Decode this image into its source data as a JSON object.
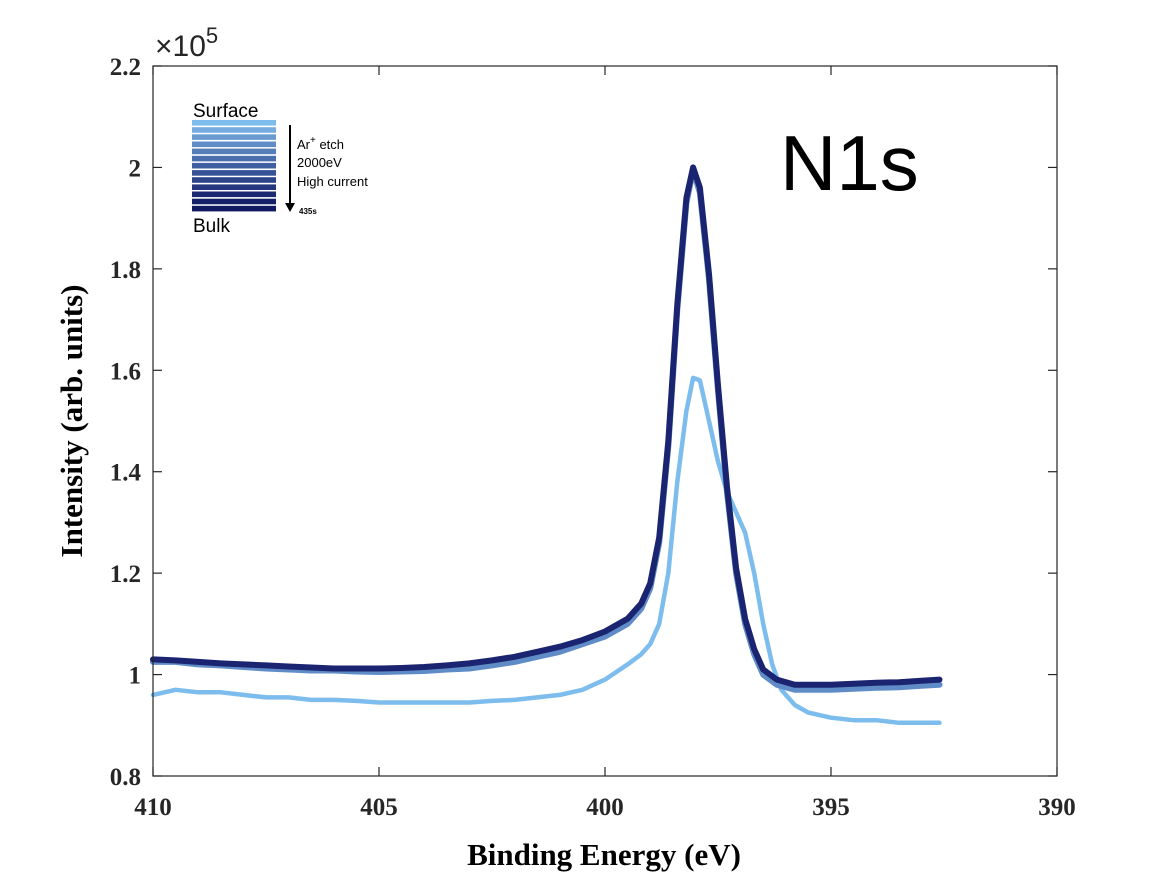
{
  "chart_data": {
    "type": "line",
    "annotation": "N1s",
    "xlabel": "Binding Energy (eV)",
    "ylabel": "Intensity (arb. units)",
    "y_exponent_label": "×10",
    "y_exponent_power": "5",
    "xlim": [
      410,
      390
    ],
    "ylim": [
      0.8,
      2.2
    ],
    "x_reversed": true,
    "grid": false,
    "xticks": [
      410,
      405,
      400,
      395,
      390
    ],
    "xtick_labels": [
      "410",
      "405",
      "400",
      "395",
      "390"
    ],
    "yticks": [
      0.8,
      1.0,
      1.2,
      1.4,
      1.6,
      1.8,
      2.0,
      2.2
    ],
    "ytick_labels": [
      "0.8",
      "1",
      "1.2",
      "1.4",
      "1.6",
      "1.8",
      "2",
      "2.2"
    ],
    "legend": {
      "placement": "top-left",
      "top_label": "Surface",
      "bottom_label": "Bulk",
      "arrow_line1_base": "Ar",
      "arrow_line1_sup": "+",
      "arrow_line1_rest": " etch",
      "arrow_line2": "2000eV",
      "arrow_line3": "High current",
      "arrow_end_label": "435s",
      "gradient_colors": [
        "#7dbdee",
        "#76acdf",
        "#6a9cd2",
        "#5f8cc6",
        "#557dba",
        "#4a6eae",
        "#405fa2",
        "#365196",
        "#2c438a",
        "#23367e",
        "#1b2a73",
        "#142068",
        "#0f1a60"
      ]
    },
    "series": [
      {
        "color": "#7dbdee",
        "width": 4.5,
        "points": [
          [
            410,
            0.96
          ],
          [
            409.5,
            0.97
          ],
          [
            409,
            0.965
          ],
          [
            408.5,
            0.965
          ],
          [
            408,
            0.96
          ],
          [
            407.5,
            0.955
          ],
          [
            407,
            0.955
          ],
          [
            406.5,
            0.95
          ],
          [
            406,
            0.95
          ],
          [
            405.5,
            0.948
          ],
          [
            405,
            0.945
          ],
          [
            404.5,
            0.945
          ],
          [
            404,
            0.945
          ],
          [
            403.5,
            0.945
          ],
          [
            403,
            0.945
          ],
          [
            402.5,
            0.948
          ],
          [
            402,
            0.95
          ],
          [
            401.5,
            0.955
          ],
          [
            401,
            0.96
          ],
          [
            400.5,
            0.97
          ],
          [
            400,
            0.99
          ],
          [
            399.5,
            1.02
          ],
          [
            399.2,
            1.04
          ],
          [
            399,
            1.06
          ],
          [
            398.8,
            1.1
          ],
          [
            398.6,
            1.2
          ],
          [
            398.4,
            1.38
          ],
          [
            398.2,
            1.52
          ],
          [
            398.05,
            1.585
          ],
          [
            397.9,
            1.58
          ],
          [
            397.7,
            1.5
          ],
          [
            397.5,
            1.42
          ],
          [
            397.3,
            1.36
          ],
          [
            397.1,
            1.32
          ],
          [
            396.9,
            1.28
          ],
          [
            396.7,
            1.2
          ],
          [
            396.5,
            1.1
          ],
          [
            396.3,
            1.02
          ],
          [
            396.1,
            0.97
          ],
          [
            395.8,
            0.94
          ],
          [
            395.5,
            0.925
          ],
          [
            395,
            0.915
          ],
          [
            394.5,
            0.91
          ],
          [
            394,
            0.91
          ],
          [
            393.5,
            0.905
          ],
          [
            393,
            0.905
          ],
          [
            392.6,
            0.905
          ]
        ]
      },
      {
        "color": "#5f8cc6",
        "width": 6,
        "points": [
          [
            410,
            1.025
          ],
          [
            409.5,
            1.025
          ],
          [
            409,
            1.02
          ],
          [
            408.5,
            1.018
          ],
          [
            408,
            1.015
          ],
          [
            407.5,
            1.012
          ],
          [
            407,
            1.01
          ],
          [
            406.5,
            1.008
          ],
          [
            406,
            1.008
          ],
          [
            405.5,
            1.006
          ],
          [
            405,
            1.005
          ],
          [
            404.5,
            1.006
          ],
          [
            404,
            1.007
          ],
          [
            403.5,
            1.01
          ],
          [
            403,
            1.012
          ],
          [
            402.5,
            1.018
          ],
          [
            402,
            1.025
          ],
          [
            401.5,
            1.035
          ],
          [
            401,
            1.045
          ],
          [
            400.5,
            1.06
          ],
          [
            400,
            1.075
          ],
          [
            399.5,
            1.1
          ],
          [
            399.2,
            1.13
          ],
          [
            399,
            1.17
          ],
          [
            398.8,
            1.26
          ],
          [
            398.6,
            1.45
          ],
          [
            398.4,
            1.72
          ],
          [
            398.2,
            1.93
          ],
          [
            398.05,
            1.995
          ],
          [
            397.9,
            1.95
          ],
          [
            397.7,
            1.78
          ],
          [
            397.5,
            1.56
          ],
          [
            397.3,
            1.36
          ],
          [
            397.1,
            1.2
          ],
          [
            396.9,
            1.1
          ],
          [
            396.7,
            1.04
          ],
          [
            396.5,
            1.0
          ],
          [
            396.2,
            0.98
          ],
          [
            395.8,
            0.97
          ],
          [
            395,
            0.97
          ],
          [
            394.5,
            0.972
          ],
          [
            394,
            0.974
          ],
          [
            393.5,
            0.975
          ],
          [
            393,
            0.978
          ],
          [
            392.6,
            0.98
          ]
        ]
      },
      {
        "color": "#1a2470",
        "width": 6,
        "points": [
          [
            410,
            1.03
          ],
          [
            409.5,
            1.028
          ],
          [
            409,
            1.025
          ],
          [
            408.5,
            1.022
          ],
          [
            408,
            1.02
          ],
          [
            407.5,
            1.018
          ],
          [
            407,
            1.016
          ],
          [
            406.5,
            1.014
          ],
          [
            406,
            1.012
          ],
          [
            405.5,
            1.012
          ],
          [
            405,
            1.012
          ],
          [
            404.5,
            1.013
          ],
          [
            404,
            1.015
          ],
          [
            403.5,
            1.018
          ],
          [
            403,
            1.022
          ],
          [
            402.5,
            1.028
          ],
          [
            402,
            1.035
          ],
          [
            401.5,
            1.045
          ],
          [
            401,
            1.055
          ],
          [
            400.5,
            1.068
          ],
          [
            400,
            1.085
          ],
          [
            399.5,
            1.11
          ],
          [
            399.2,
            1.14
          ],
          [
            399,
            1.18
          ],
          [
            398.8,
            1.27
          ],
          [
            398.6,
            1.46
          ],
          [
            398.4,
            1.73
          ],
          [
            398.2,
            1.94
          ],
          [
            398.05,
            2.0
          ],
          [
            397.9,
            1.96
          ],
          [
            397.7,
            1.79
          ],
          [
            397.5,
            1.57
          ],
          [
            397.3,
            1.37
          ],
          [
            397.1,
            1.21
          ],
          [
            396.9,
            1.11
          ],
          [
            396.7,
            1.05
          ],
          [
            396.5,
            1.01
          ],
          [
            396.2,
            0.99
          ],
          [
            395.8,
            0.98
          ],
          [
            395,
            0.98
          ],
          [
            394.5,
            0.982
          ],
          [
            394,
            0.984
          ],
          [
            393.5,
            0.985
          ],
          [
            393,
            0.988
          ],
          [
            392.6,
            0.99
          ]
        ]
      }
    ]
  }
}
